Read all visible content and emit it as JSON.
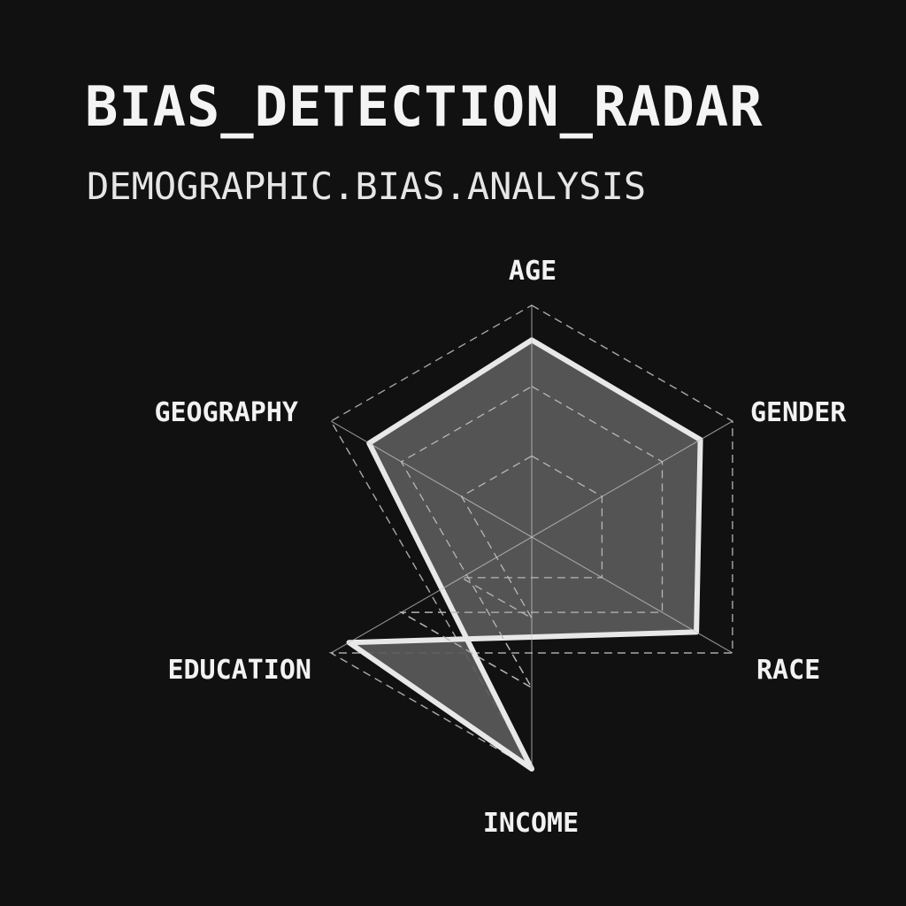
{
  "chart_data": {
    "type": "radar",
    "title": "BIAS_DETECTION_RADAR",
    "subtitle": "DEMOGRAPHIC.BIAS.ANALYSIS",
    "axes": [
      "AGE",
      "GENDER",
      "RACE",
      "EDUCATION",
      "INCOME",
      "GEOGRAPHY"
    ],
    "series": [
      {
        "values": [
          0.85,
          0.84,
          0.82,
          0.91,
          1.0,
          0.81
        ]
      }
    ],
    "rmax": 1.0,
    "rings": [
      0.35,
      0.65,
      1.0
    ],
    "grid": true,
    "grid_style": "dashed",
    "colors": {
      "background": "#111111",
      "fill": "#5a5a5a",
      "outline": "#e8e8e8",
      "grid": "#a8a8a8",
      "text": "#f2f2f2"
    }
  }
}
